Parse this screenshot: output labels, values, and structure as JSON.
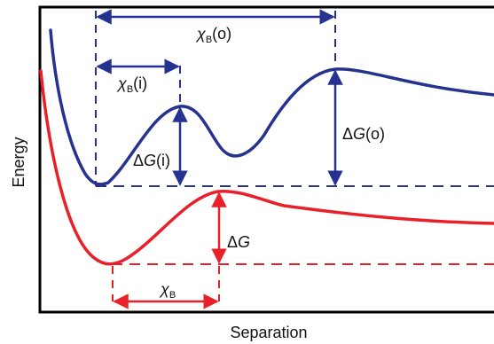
{
  "axes": {
    "xlabel": "Separation",
    "ylabel": "Energy"
  },
  "labels": {
    "chi_symbol": "χ",
    "chi_sub": "B",
    "chi_b_outer_suffix": "(o)",
    "chi_b_inner_suffix": "(i)",
    "delta_symbol": "Δ",
    "g_symbol": "G",
    "delta_g_inner_suffix": "(i)",
    "delta_g_outer_suffix": "(o)"
  },
  "colors": {
    "blue": "#25328f",
    "red": "#e8202a",
    "frame": "#000000"
  }
}
